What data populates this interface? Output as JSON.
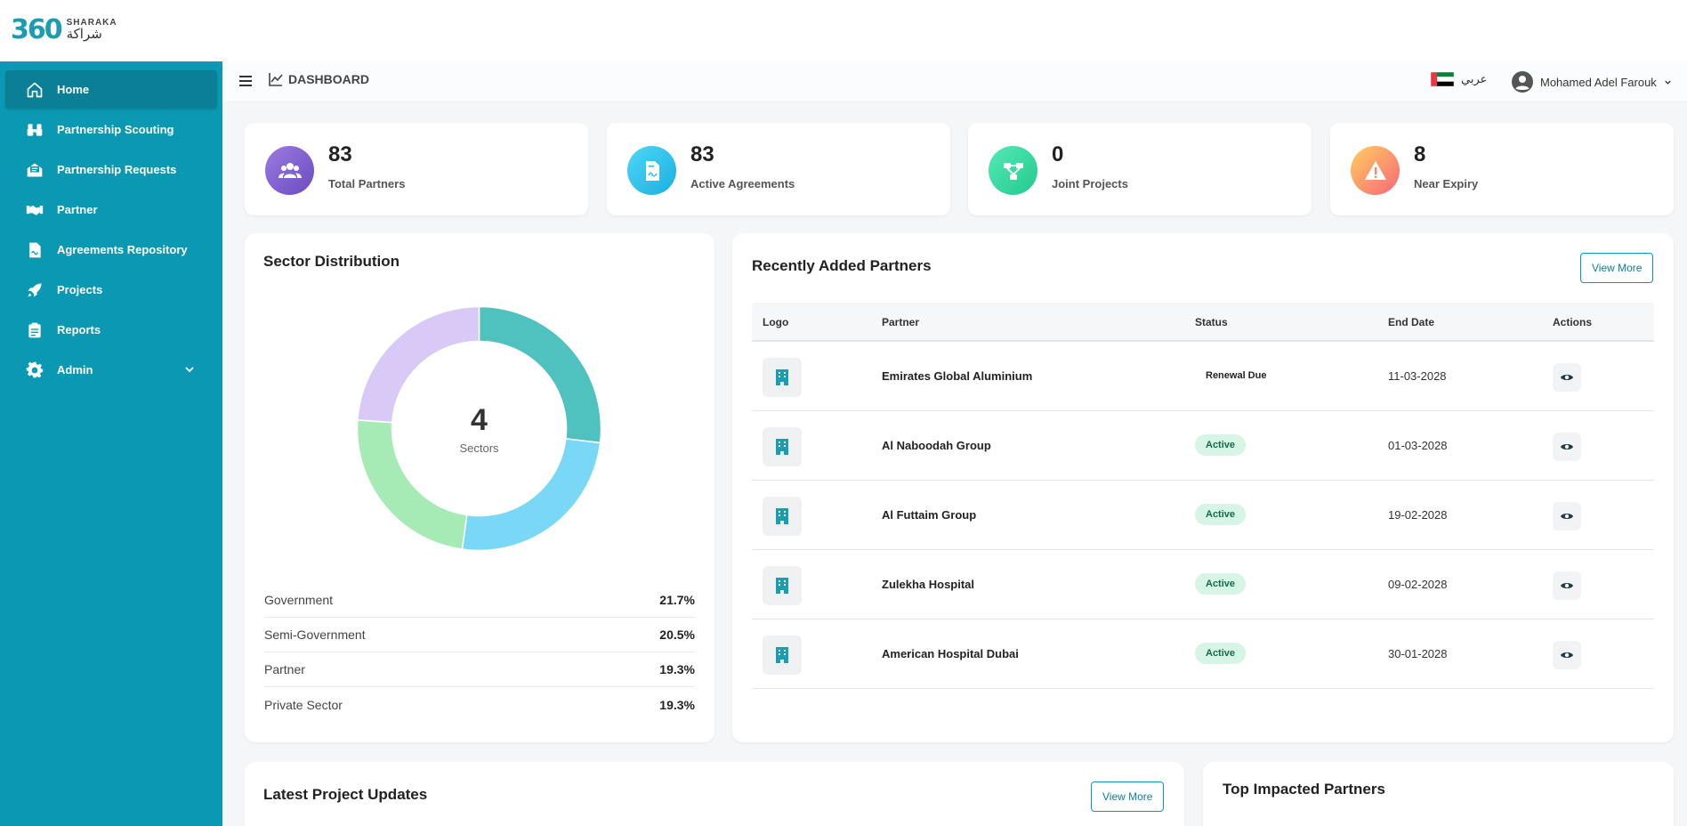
{
  "app": {
    "logo_mark": "360",
    "logo_en": "SHARAKA",
    "logo_ar": "شراكة"
  },
  "sidebar": {
    "items": [
      {
        "label": "Home",
        "icon": "home-icon"
      },
      {
        "label": "Partnership Scouting",
        "icon": "binoculars-icon"
      },
      {
        "label": "Partnership Requests",
        "icon": "mail-open-icon"
      },
      {
        "label": "Partner",
        "icon": "handshake-icon"
      },
      {
        "label": "Agreements Repository",
        "icon": "document-icon"
      },
      {
        "label": "Projects",
        "icon": "rocket-icon"
      },
      {
        "label": "Reports",
        "icon": "clipboard-icon"
      },
      {
        "label": "Admin",
        "icon": "gear-icon"
      }
    ]
  },
  "header": {
    "title": "DASHBOARD",
    "language": "عربي",
    "user_name": "Mohamed Adel Farouk"
  },
  "stats": [
    {
      "value": "83",
      "label": "Total Partners",
      "icon": "users-icon",
      "color": "#7b5fc9"
    },
    {
      "value": "83",
      "label": "Active Agreements",
      "icon": "agreement-doc-icon",
      "color": "#2cc0ec"
    },
    {
      "value": "0",
      "label": "Joint Projects",
      "icon": "network-icon",
      "color": "#2ed7a0"
    },
    {
      "value": "8",
      "label": "Near Expiry",
      "icon": "warning-icon",
      "color": "#f77a5c"
    }
  ],
  "sector": {
    "title": "Sector Distribution",
    "center_value": "4",
    "center_label": "Sectors",
    "legend": [
      {
        "name": "Government",
        "value": "21.7%"
      },
      {
        "name": "Semi-Government",
        "value": "20.5%"
      },
      {
        "name": "Partner",
        "value": "19.3%"
      },
      {
        "name": "Private Sector",
        "value": "19.3%"
      }
    ],
    "colors": [
      "#4fc2c0",
      "#79d8f5",
      "#a6eab6",
      "#d9c9f7"
    ]
  },
  "partners": {
    "title": "Recently Added Partners",
    "view_more": "View More",
    "columns": [
      "Logo",
      "Partner",
      "Status",
      "End Date",
      "Actions"
    ],
    "rows": [
      {
        "name": "Emirates Global Aluminium",
        "status": "Renewal Due",
        "status_kind": "renewal",
        "end_date": "11-03-2028"
      },
      {
        "name": "Al Naboodah Group",
        "status": "Active",
        "status_kind": "active",
        "end_date": "01-03-2028"
      },
      {
        "name": "Al Futtaim Group",
        "status": "Active",
        "status_kind": "active",
        "end_date": "19-02-2028"
      },
      {
        "name": "Zulekha Hospital",
        "status": "Active",
        "status_kind": "active",
        "end_date": "09-02-2028"
      },
      {
        "name": "American Hospital Dubai",
        "status": "Active",
        "status_kind": "active",
        "end_date": "30-01-2028"
      }
    ]
  },
  "project_updates": {
    "title": "Latest Project Updates",
    "view_more": "View More"
  },
  "top_impacted": {
    "title": "Top Impacted Partners"
  }
}
